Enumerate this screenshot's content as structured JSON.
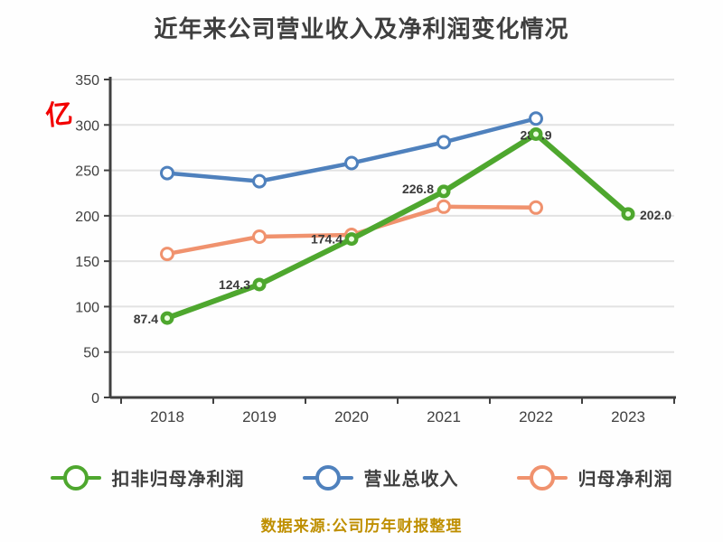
{
  "page": {
    "background": "#fefefe"
  },
  "chart_data": {
    "type": "line",
    "title": "近年来公司营业收入及净利润变化情况",
    "categories": [
      "2018",
      "2019",
      "2020",
      "2021",
      "2022",
      "2023"
    ],
    "series": [
      {
        "name": "扣非归母净利润",
        "color": "#4EA72E",
        "line_width": 6,
        "marker": "filled-circle",
        "values": [
          87.4,
          124.3,
          174.4,
          226.8,
          289.9,
          202.0
        ],
        "point_labels": [
          "87.4",
          "124.3",
          "174.4",
          "226.8",
          "289.9",
          "202.0"
        ]
      },
      {
        "name": "营业总收入",
        "color": "#4F81BD",
        "line_width": 4.5,
        "marker": "open-circle",
        "values": [
          247,
          238,
          258,
          281,
          307,
          null
        ],
        "point_labels": null
      },
      {
        "name": "归母净利润",
        "color": "#F0926E",
        "line_width": 4.5,
        "marker": "open-circle",
        "values": [
          158,
          177,
          179,
          210,
          209,
          null
        ],
        "point_labels": null
      }
    ],
    "ylabel": "",
    "xlabel": "",
    "ylim": [
      0,
      350
    ],
    "ytick_step": 50,
    "ytick_labels": [
      "0",
      "50",
      "100",
      "150",
      "200",
      "250",
      "300",
      "350"
    ],
    "grid": "horizontal-light",
    "legend_position": "bottom",
    "axis_color": "#404040",
    "grid_color": "#e2e2e2",
    "label_color": "#3a3a3a",
    "y_axis_annotation": {
      "text": "亿",
      "color": "#f20000"
    },
    "source_note": {
      "text": "数据来源:公司历年财报整理",
      "color": "#bf8f00"
    }
  }
}
